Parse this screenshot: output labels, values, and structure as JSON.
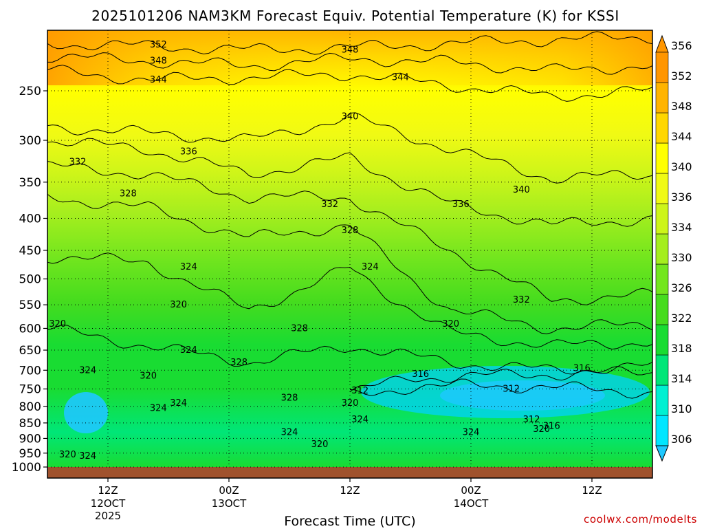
{
  "chart_data": {
    "type": "heatmap",
    "title": "2025101206 NAM3KM Forecast Equiv. Potential Temperature (K) for KSSI",
    "xlabel": "Forecast Time (UTC)",
    "ylabel": "",
    "y_scale": "log (pressure)",
    "y_ticks": [
      250,
      300,
      350,
      400,
      450,
      500,
      550,
      600,
      650,
      700,
      750,
      800,
      850,
      900,
      950,
      1000
    ],
    "ylim": [
      1000,
      200
    ],
    "x_ticks": [
      {
        "hour": 6,
        "label": "12Z",
        "sub": "12OCT",
        "sub2": "2025"
      },
      {
        "hour": 18,
        "label": "00Z",
        "sub": "13OCT",
        "sub2": ""
      },
      {
        "hour": 30,
        "label": "12Z",
        "sub": "",
        "sub2": ""
      },
      {
        "hour": 42,
        "label": "00Z",
        "sub": "14OCT",
        "sub2": ""
      },
      {
        "hour": 54,
        "label": "12Z",
        "sub": "",
        "sub2": ""
      }
    ],
    "xlim": [
      0,
      60
    ],
    "colorbar_levels": [
      306,
      310,
      314,
      318,
      322,
      326,
      330,
      334,
      336,
      340,
      344,
      348,
      352,
      356
    ],
    "colorbar_colors": [
      "#1ec8ff",
      "#00e6ff",
      "#00f0d2",
      "#00e678",
      "#19dc32",
      "#46dc1e",
      "#73e61e",
      "#a5ee1e",
      "#cdf519",
      "#f0fa14",
      "#ffff00",
      "#ffd700",
      "#ffb400",
      "#ff9600"
    ],
    "isotherms": [
      {
        "value": 352,
        "points": [
          [
            0,
            210
          ],
          [
            10,
            212
          ],
          [
            20,
            215
          ],
          [
            30,
            213
          ],
          [
            40,
            210
          ],
          [
            50,
            207
          ],
          [
            60,
            205
          ]
        ]
      },
      {
        "value": 348,
        "points": [
          [
            0,
            220
          ],
          [
            10,
            224
          ],
          [
            20,
            228
          ],
          [
            30,
            222
          ],
          [
            40,
            225
          ],
          [
            50,
            232
          ],
          [
            60,
            228
          ]
        ]
      },
      {
        "value": 344,
        "points": [
          [
            0,
            232
          ],
          [
            10,
            240
          ],
          [
            20,
            238
          ],
          [
            30,
            235
          ],
          [
            40,
            245
          ],
          [
            50,
            255
          ],
          [
            60,
            250
          ]
        ]
      },
      {
        "value": 340,
        "points": [
          [
            0,
            285
          ],
          [
            10,
            292
          ],
          [
            20,
            300
          ],
          [
            30,
            275
          ],
          [
            40,
            310
          ],
          [
            50,
            345
          ],
          [
            60,
            340
          ]
        ]
      },
      {
        "value": 336,
        "points": [
          [
            0,
            300
          ],
          [
            10,
            310
          ],
          [
            20,
            340
          ],
          [
            30,
            320
          ],
          [
            40,
            380
          ],
          [
            50,
            410
          ],
          [
            60,
            400
          ]
        ]
      },
      {
        "value": 332,
        "points": [
          [
            0,
            330
          ],
          [
            10,
            340
          ],
          [
            20,
            370
          ],
          [
            30,
            370
          ],
          [
            40,
            450
          ],
          [
            50,
            540
          ],
          [
            60,
            530
          ]
        ]
      },
      {
        "value": 328,
        "points": [
          [
            0,
            370
          ],
          [
            10,
            385
          ],
          [
            20,
            430
          ],
          [
            30,
            410
          ],
          [
            40,
            560
          ],
          [
            50,
            600
          ],
          [
            60,
            590
          ]
        ]
      },
      {
        "value": 324,
        "points": [
          [
            0,
            460
          ],
          [
            10,
            470
          ],
          [
            20,
            560
          ],
          [
            30,
            480
          ],
          [
            40,
            610
          ],
          [
            50,
            640
          ],
          [
            60,
            630
          ]
        ]
      },
      {
        "value": 320,
        "points": [
          [
            0,
            600
          ],
          [
            10,
            640
          ],
          [
            20,
            680
          ],
          [
            30,
            640
          ],
          [
            40,
            680
          ],
          [
            50,
            700
          ],
          [
            60,
            690
          ]
        ]
      },
      {
        "value": 316,
        "points": [
          [
            30,
            760
          ],
          [
            36,
            720
          ],
          [
            42,
            715
          ],
          [
            50,
            710
          ],
          [
            60,
            705
          ]
        ]
      },
      {
        "value": 312,
        "points": [
          [
            30,
            770
          ],
          [
            36,
            745
          ],
          [
            42,
            740
          ],
          [
            50,
            745
          ],
          [
            60,
            760
          ]
        ]
      }
    ],
    "contour_labels": [
      {
        "x": 11,
        "p": 211,
        "text": "352"
      },
      {
        "x": 11,
        "p": 224,
        "text": "348"
      },
      {
        "x": 11,
        "p": 240,
        "text": "344"
      },
      {
        "x": 30,
        "p": 215,
        "text": "348"
      },
      {
        "x": 35,
        "p": 238,
        "text": "344"
      },
      {
        "x": 30,
        "p": 275,
        "text": "340"
      },
      {
        "x": 47,
        "p": 360,
        "text": "340"
      },
      {
        "x": 14,
        "p": 313,
        "text": "336"
      },
      {
        "x": 41,
        "p": 380,
        "text": "336"
      },
      {
        "x": 3,
        "p": 325,
        "text": "332"
      },
      {
        "x": 28,
        "p": 380,
        "text": "332"
      },
      {
        "x": 47,
        "p": 540,
        "text": "332"
      },
      {
        "x": 8,
        "p": 365,
        "text": "328"
      },
      {
        "x": 30,
        "p": 418,
        "text": "328"
      },
      {
        "x": 25,
        "p": 600,
        "text": "328"
      },
      {
        "x": 19,
        "p": 680,
        "text": "328"
      },
      {
        "x": 24,
        "p": 775,
        "text": "328"
      },
      {
        "x": 14,
        "p": 478,
        "text": "324"
      },
      {
        "x": 32,
        "p": 478,
        "text": "324"
      },
      {
        "x": 14,
        "p": 650,
        "text": "324"
      },
      {
        "x": 4,
        "p": 700,
        "text": "324"
      },
      {
        "x": 13,
        "p": 790,
        "text": "324"
      },
      {
        "x": 11,
        "p": 805,
        "text": "324"
      },
      {
        "x": 31,
        "p": 840,
        "text": "324"
      },
      {
        "x": 24,
        "p": 880,
        "text": "324"
      },
      {
        "x": 42,
        "p": 880,
        "text": "324"
      },
      {
        "x": 4,
        "p": 960,
        "text": "324"
      },
      {
        "x": 13,
        "p": 550,
        "text": "320"
      },
      {
        "x": 1,
        "p": 590,
        "text": "320"
      },
      {
        "x": 40,
        "p": 590,
        "text": "320"
      },
      {
        "x": 10,
        "p": 715,
        "text": "320"
      },
      {
        "x": 30,
        "p": 790,
        "text": "320"
      },
      {
        "x": 27,
        "p": 920,
        "text": "320"
      },
      {
        "x": 49,
        "p": 870,
        "text": "320"
      },
      {
        "x": 2,
        "p": 955,
        "text": "320"
      },
      {
        "x": 37,
        "p": 710,
        "text": "316"
      },
      {
        "x": 53,
        "p": 695,
        "text": "316"
      },
      {
        "x": 50,
        "p": 860,
        "text": "316"
      },
      {
        "x": 31,
        "p": 755,
        "text": "312"
      },
      {
        "x": 46,
        "p": 750,
        "text": "312"
      },
      {
        "x": 48,
        "p": 840,
        "text": "312"
      }
    ]
  },
  "credit": "coolwx.com/modelts"
}
